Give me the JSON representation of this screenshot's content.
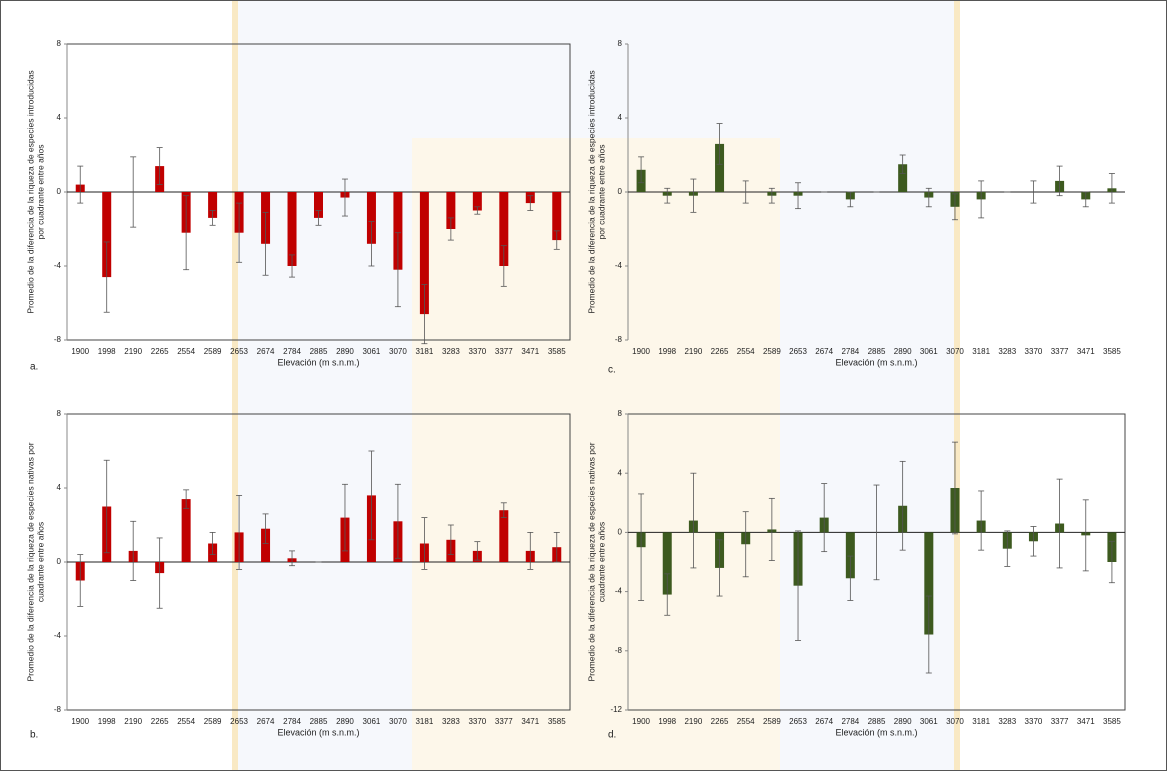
{
  "chart_data": [
    {
      "type": "bar",
      "panel_label": "a.",
      "ylabel": [
        "Promedio de la diferencia de la riqueza de especies introducidas",
        "por cuadrante entre años"
      ],
      "xlabel": "Elevación (m s.n.m.)",
      "box": true,
      "categories": [
        "1900",
        "1998",
        "2190",
        "2265",
        "2554",
        "2589",
        "2653",
        "2674",
        "2784",
        "2885",
        "2890",
        "3061",
        "3070",
        "3181",
        "3283",
        "3370",
        "3377",
        "3471",
        "3585"
      ],
      "color": "#c00000",
      "values": [
        0.4,
        -4.6,
        0,
        1.4,
        -2.2,
        -1.4,
        -2.2,
        -2.8,
        -4.0,
        -1.4,
        -0.3,
        -2.8,
        -4.2,
        -6.6,
        -2.0,
        -1.0,
        -4.0,
        -0.6,
        -2.6
      ],
      "errors": [
        1.0,
        1.9,
        1.9,
        1.0,
        2.0,
        0.4,
        1.6,
        1.7,
        0.6,
        0.4,
        1.0,
        1.2,
        2.0,
        1.6,
        0.6,
        0.2,
        1.1,
        0.4,
        0.5
      ],
      "ylim": [
        -8,
        8
      ],
      "yticks": [
        -8,
        -4,
        0,
        4,
        8
      ]
    },
    {
      "type": "bar",
      "panel_label": "b.",
      "ylabel": [
        "Promedio de la diferencia de la riqueza de especies nativas por",
        "cuadrante entre años"
      ],
      "xlabel": "Elevación (m s.n.m.)",
      "box": true,
      "categories": [
        "1900",
        "1998",
        "2190",
        "2265",
        "2554",
        "2589",
        "2653",
        "2674",
        "2784",
        "2885",
        "2890",
        "3061",
        "3070",
        "3181",
        "3283",
        "3370",
        "3377",
        "3471",
        "3585"
      ],
      "color": "#c00000",
      "values": [
        -1.0,
        3.0,
        0.6,
        -0.6,
        3.4,
        1.0,
        1.6,
        1.8,
        0.2,
        0,
        2.4,
        3.6,
        2.2,
        1.0,
        1.2,
        0.6,
        2.8,
        0.6,
        0.8
      ],
      "errors": [
        1.4,
        2.5,
        1.6,
        1.9,
        0.5,
        0.6,
        2.0,
        0.8,
        0.4,
        0,
        1.8,
        2.4,
        2.0,
        1.4,
        0.8,
        0.5,
        0.4,
        1.0,
        0.8
      ],
      "ylim": [
        -8,
        8
      ],
      "yticks": [
        -8,
        -4,
        0,
        4,
        8
      ]
    },
    {
      "type": "bar",
      "panel_label": "c.",
      "ylabel": [
        "Promedio de la diferencia de la riqueza de especies introducidas",
        "por cuadrante entre años"
      ],
      "xlabel": "Elevación (m s.n.m.)",
      "box": false,
      "categories": [
        "1900",
        "1998",
        "2190",
        "2265",
        "2554",
        "2589",
        "2653",
        "2674",
        "2784",
        "2885",
        "2890",
        "3061",
        "3070",
        "3181",
        "3283",
        "3370",
        "3377",
        "3471",
        "3585"
      ],
      "color": "#3d5a1f",
      "values": [
        1.2,
        -0.2,
        -0.2,
        2.6,
        0,
        -0.2,
        -0.2,
        0,
        -0.4,
        0,
        1.5,
        -0.3,
        -0.8,
        -0.4,
        0,
        0,
        0.6,
        -0.4,
        0.2
      ],
      "errors": [
        0.7,
        0.4,
        0.9,
        1.1,
        0.6,
        0.4,
        0.7,
        0,
        0.4,
        0,
        0.5,
        0.5,
        0.7,
        1.0,
        0,
        0.6,
        0.8,
        0.4,
        0.8
      ],
      "ylim": [
        -8,
        8
      ],
      "yticks": [
        -8,
        -4,
        0,
        4,
        8
      ]
    },
    {
      "type": "bar",
      "panel_label": "d.",
      "ylabel": [
        "Promedio de la diferencia de la riqueza de especies nativas por",
        "cuadrante entre años"
      ],
      "xlabel": "Elevación (m s.n.m.)",
      "box": true,
      "categories": [
        "1900",
        "1998",
        "2190",
        "2265",
        "2554",
        "2589",
        "2653",
        "2674",
        "2784",
        "2885",
        "2890",
        "3061",
        "3070",
        "3181",
        "3283",
        "3370",
        "3377",
        "3471",
        "3585"
      ],
      "color": "#3d5a1f",
      "values": [
        -1.0,
        -4.2,
        0.8,
        -2.4,
        -0.8,
        0.2,
        -3.6,
        1.0,
        -3.1,
        0,
        1.8,
        -6.9,
        3.0,
        0.8,
        -1.1,
        -0.6,
        0.6,
        -0.2,
        -2.0
      ],
      "errors": [
        3.6,
        1.4,
        3.2,
        1.9,
        2.2,
        2.1,
        3.7,
        2.3,
        1.5,
        3.2,
        3.0,
        2.6,
        3.1,
        2.0,
        1.2,
        1.0,
        3.0,
        2.4,
        1.4
      ],
      "ylim": [
        -12,
        8
      ],
      "yticks": [
        -12,
        -8,
        -4,
        0,
        4,
        8
      ]
    }
  ]
}
